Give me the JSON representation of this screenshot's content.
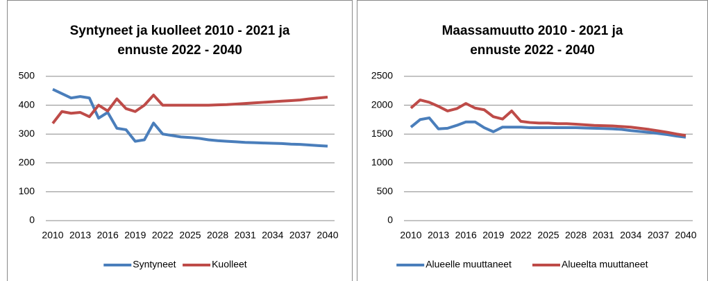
{
  "chart_data": [
    {
      "type": "line",
      "title": [
        "Syntyneet ja kuolleet 2010 - 2021 ja",
        "ennuste 2022 - 2040"
      ],
      "x": [
        2010,
        2011,
        2012,
        2013,
        2014,
        2015,
        2016,
        2017,
        2018,
        2019,
        2020,
        2021,
        2022,
        2023,
        2024,
        2025,
        2026,
        2027,
        2028,
        2029,
        2030,
        2031,
        2032,
        2033,
        2034,
        2035,
        2036,
        2037,
        2038,
        2039,
        2040
      ],
      "series": [
        {
          "name": "Syntyneet",
          "color": "#4a7ebb",
          "values": [
            455,
            440,
            425,
            430,
            425,
            355,
            375,
            320,
            315,
            275,
            280,
            338,
            300,
            295,
            290,
            288,
            285,
            280,
            277,
            275,
            273,
            271,
            270,
            269,
            268,
            267,
            265,
            264,
            262,
            260,
            258
          ]
        },
        {
          "name": "Kuolleet",
          "color": "#be4b48",
          "values": [
            337,
            378,
            372,
            375,
            360,
            400,
            380,
            422,
            388,
            378,
            400,
            435,
            400,
            400,
            400,
            400,
            400,
            400,
            401,
            402,
            404,
            406,
            408,
            410,
            412,
            414,
            416,
            418,
            422,
            425,
            428
          ]
        }
      ],
      "xlim": [
        2010,
        2040
      ],
      "xticks": [
        2010,
        2013,
        2016,
        2019,
        2022,
        2025,
        2028,
        2031,
        2034,
        2037,
        2040
      ],
      "ylim": [
        0,
        500
      ],
      "yticks": [
        0,
        100,
        200,
        300,
        400,
        500
      ],
      "grid": true,
      "legend": "bottom"
    },
    {
      "type": "line",
      "title": [
        "Maassamuutto 2010 - 2021 ja",
        "ennuste 2022 - 2040"
      ],
      "x": [
        2010,
        2011,
        2012,
        2013,
        2014,
        2015,
        2016,
        2017,
        2018,
        2019,
        2020,
        2021,
        2022,
        2023,
        2024,
        2025,
        2026,
        2027,
        2028,
        2029,
        2030,
        2031,
        2032,
        2033,
        2034,
        2035,
        2036,
        2037,
        2038,
        2039,
        2040
      ],
      "series": [
        {
          "name": "Alueelle muuttaneet",
          "color": "#4a7ebb",
          "values": [
            1620,
            1750,
            1780,
            1590,
            1600,
            1650,
            1710,
            1710,
            1610,
            1540,
            1620,
            1620,
            1620,
            1610,
            1610,
            1610,
            1610,
            1610,
            1610,
            1605,
            1600,
            1595,
            1590,
            1580,
            1560,
            1545,
            1530,
            1510,
            1490,
            1465,
            1445
          ]
        },
        {
          "name": "Alueelta muuttaneet",
          "color": "#be4b48",
          "values": [
            1950,
            2090,
            2050,
            1980,
            1900,
            1940,
            2030,
            1950,
            1920,
            1800,
            1760,
            1900,
            1720,
            1700,
            1690,
            1690,
            1680,
            1680,
            1670,
            1660,
            1650,
            1645,
            1640,
            1630,
            1620,
            1600,
            1580,
            1555,
            1530,
            1500,
            1475
          ]
        }
      ],
      "xlim": [
        2010,
        2040
      ],
      "xticks": [
        2010,
        2013,
        2016,
        2019,
        2022,
        2025,
        2028,
        2031,
        2034,
        2037,
        2040
      ],
      "ylim": [
        0,
        2500
      ],
      "yticks": [
        0,
        500,
        1000,
        1500,
        2000,
        2500
      ],
      "grid": true,
      "legend": "bottom"
    }
  ]
}
